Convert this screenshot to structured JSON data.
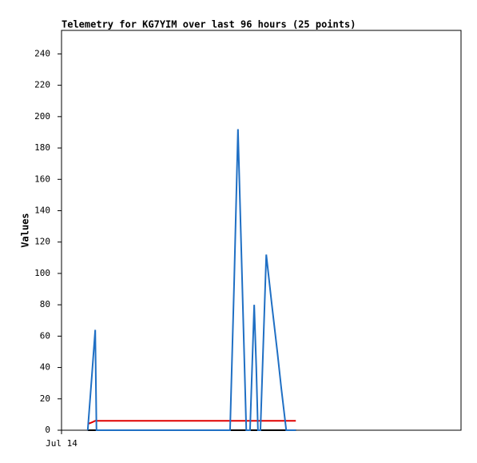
{
  "chart_data": {
    "type": "line",
    "title": "Telemetry for KG7YIM over last 96 hours (25 points)",
    "y_label": "Values",
    "x": [
      6.3,
      7.3,
      8.1,
      8.4,
      40.5,
      41.5,
      42.4,
      43.4,
      44.4,
      44.7,
      45.3,
      45.9,
      46.3,
      46.8,
      47.2,
      47.8,
      48.6,
      49.2,
      50.5,
      51.9,
      52.8,
      54.0,
      54.7,
      55.5,
      56.3
    ],
    "series": [
      {
        "color": "#000000",
        "values": [
          0,
          0,
          0,
          0,
          0,
          0,
          0,
          0,
          0,
          0,
          0,
          0,
          0,
          0,
          0,
          0,
          0,
          0,
          0,
          0,
          0,
          0,
          0,
          0,
          0
        ]
      },
      {
        "color": "#e00000",
        "values": [
          4,
          5,
          6,
          6,
          6,
          6,
          6,
          6,
          6,
          6,
          6,
          6,
          6,
          6,
          6,
          6,
          6,
          6,
          6,
          6,
          6,
          6,
          6,
          6,
          6
        ]
      },
      {
        "color": "#1f6fc4",
        "values": [
          0,
          35,
          64,
          0,
          0,
          96,
          192,
          96,
          0,
          0,
          0,
          48,
          80,
          40,
          0,
          0,
          64,
          112,
          81,
          49,
          27,
          0,
          0,
          0,
          0
        ]
      }
    ],
    "xlim": [
      0,
      96
    ],
    "xticks": [
      {
        "value": 0,
        "label": "Jul 14"
      }
    ],
    "ylim": [
      0,
      255
    ],
    "yticks": [
      0,
      20,
      40,
      60,
      80,
      100,
      120,
      140,
      160,
      180,
      200,
      220,
      240
    ],
    "grid": false
  }
}
